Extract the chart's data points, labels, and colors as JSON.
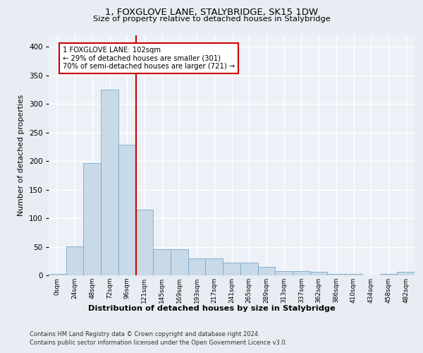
{
  "title1": "1, FOXGLOVE LANE, STALYBRIDGE, SK15 1DW",
  "title2": "Size of property relative to detached houses in Stalybridge",
  "xlabel": "Distribution of detached houses by size in Stalybridge",
  "ylabel": "Number of detached properties",
  "bar_labels": [
    "0sqm",
    "24sqm",
    "48sqm",
    "72sqm",
    "96sqm",
    "121sqm",
    "145sqm",
    "169sqm",
    "193sqm",
    "217sqm",
    "241sqm",
    "265sqm",
    "289sqm",
    "313sqm",
    "337sqm",
    "362sqm",
    "386sqm",
    "410sqm",
    "434sqm",
    "458sqm",
    "482sqm"
  ],
  "bar_values": [
    2,
    51,
    197,
    325,
    229,
    115,
    46,
    46,
    30,
    30,
    22,
    22,
    15,
    8,
    8,
    6,
    2,
    2,
    0,
    2,
    6
  ],
  "bar_color": "#c8d9e8",
  "bar_edge_color": "#7aaac8",
  "property_line_color": "#cc0000",
  "ylim": [
    0,
    420
  ],
  "yticks": [
    0,
    50,
    100,
    150,
    200,
    250,
    300,
    350,
    400
  ],
  "annotation_text": "1 FOXGLOVE LANE: 102sqm\n← 29% of detached houses are smaller (301)\n70% of semi-detached houses are larger (721) →",
  "annotation_box_color": "#ffffff",
  "annotation_box_edge": "#cc0000",
  "footer1": "Contains HM Land Registry data © Crown copyright and database right 2024.",
  "footer2": "Contains public sector information licensed under the Open Government Licence v3.0.",
  "bg_color": "#e8edf3",
  "plot_bg_color": "#edf1f7",
  "grid_color": "#ffffff"
}
